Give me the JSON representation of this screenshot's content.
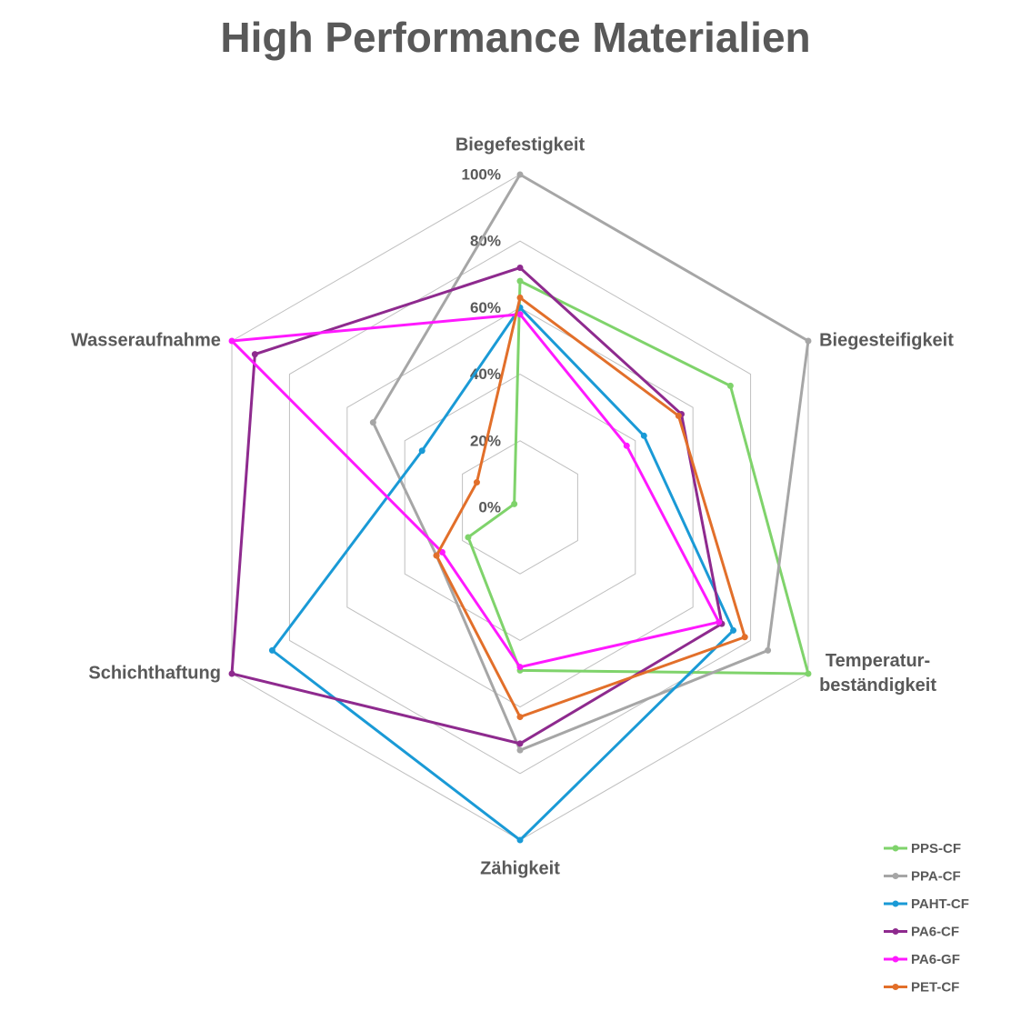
{
  "chart_data": {
    "type": "radar",
    "title": "High Performance Materialien",
    "categories": [
      "Biegefestigkeit",
      "Biegesteifigkeit",
      "Temperatur-\nbeständigkeit",
      "Zähigkeit",
      "Schichthaftung",
      "Wasseraufnahme"
    ],
    "ylim": [
      0,
      100
    ],
    "yticks": [
      {
        "value": 0,
        "label": "0%"
      },
      {
        "value": 20,
        "label": "20%"
      },
      {
        "value": 40,
        "label": "40%"
      },
      {
        "value": 60,
        "label": "60%"
      },
      {
        "value": 80,
        "label": "80%"
      },
      {
        "value": 100,
        "label": "100%"
      }
    ],
    "grid": true,
    "legend": "bottom-right",
    "series": [
      {
        "name": "PPS-CF",
        "color": "#7fd36b",
        "values": [
          68,
          73,
          100,
          49,
          18,
          2
        ]
      },
      {
        "name": "PPA-CF",
        "color": "#a6a6a6",
        "values": [
          100,
          100,
          86,
          73,
          29,
          51
        ]
      },
      {
        "name": "PAHT-CF",
        "color": "#1a9ad6",
        "values": [
          60,
          43,
          74,
          100,
          86,
          34
        ]
      },
      {
        "name": "PA6-CF",
        "color": "#8e2a8e",
        "values": [
          72,
          56,
          70,
          71,
          100,
          92
        ]
      },
      {
        "name": "PA6-GF",
        "color": "#ff19ff",
        "values": [
          58,
          37,
          69,
          48,
          27,
          100
        ]
      },
      {
        "name": "PET-CF",
        "color": "#e26f2a",
        "values": [
          63,
          55,
          78,
          63,
          29,
          15
        ]
      }
    ]
  }
}
